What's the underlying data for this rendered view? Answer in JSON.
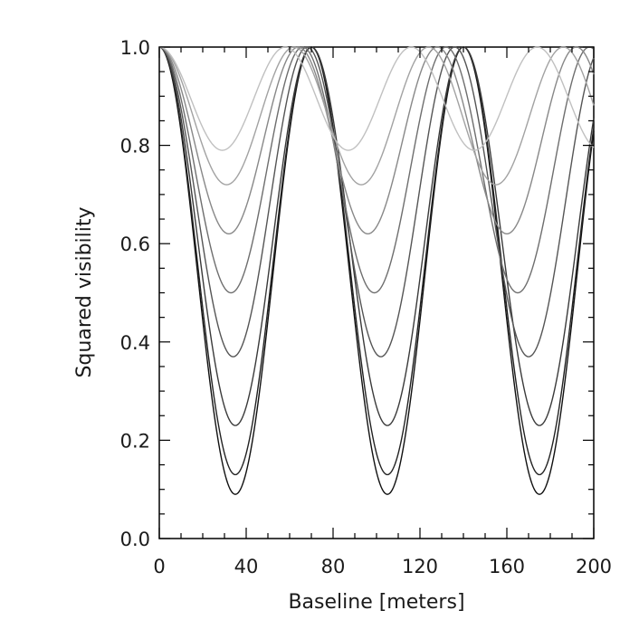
{
  "chart_data": {
    "type": "line",
    "xlabel": "Baseline [meters]",
    "ylabel": "Squared visibility",
    "xlim": [
      0,
      200
    ],
    "ylim": [
      0,
      1
    ],
    "x_ticks": [
      "0",
      "40",
      "80",
      "120",
      "160",
      "200"
    ],
    "x_tick_values": [
      0,
      40,
      80,
      120,
      160,
      200
    ],
    "y_ticks": [
      "0.0",
      "0.2",
      "0.4",
      "0.6",
      "0.8",
      "1.0"
    ],
    "y_tick_values": [
      0,
      0.2,
      0.4,
      0.6,
      0.8,
      1.0
    ],
    "grid": false,
    "series": [
      {
        "period": 70,
        "minimum": 0.09,
        "color": "#111111"
      },
      {
        "period": 70,
        "minimum": 0.13,
        "color": "#222222"
      },
      {
        "period": 70,
        "minimum": 0.23,
        "color": "#3a3a3a"
      },
      {
        "period": 68,
        "minimum": 0.37,
        "color": "#555555"
      },
      {
        "period": 66,
        "minimum": 0.5,
        "color": "#6e6e6e"
      },
      {
        "period": 64,
        "minimum": 0.62,
        "color": "#888888"
      },
      {
        "period": 62,
        "minimum": 0.72,
        "color": "#a2a2a2"
      },
      {
        "period": 58,
        "minimum": 0.79,
        "color": "#c0c0c0"
      }
    ]
  }
}
